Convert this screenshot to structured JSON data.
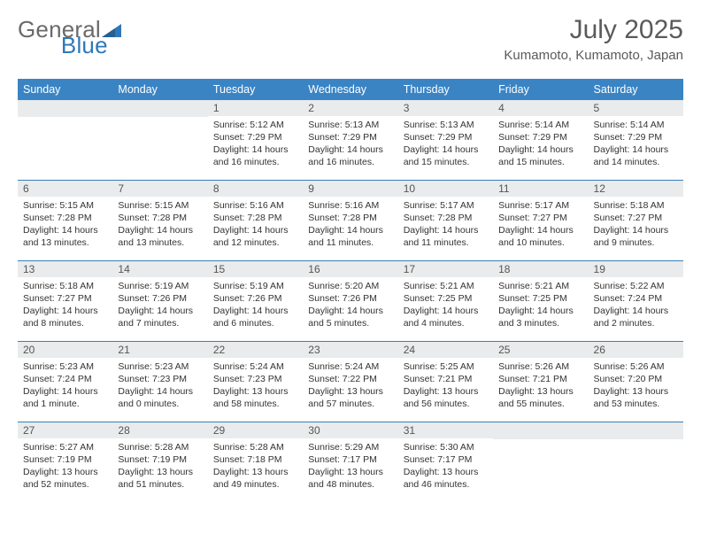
{
  "logo": {
    "general": "General",
    "blue": "Blue"
  },
  "header": {
    "month_title": "July 2025",
    "location": "Kumamoto, Kumamoto, Japan"
  },
  "colors": {
    "header_bg": "#3a84c4",
    "row_divider": "#3a7fb8",
    "daynum_bg": "#e9ebec",
    "logo_blue": "#2f78b7",
    "text_gray": "#6a6a6a"
  },
  "weekdays": [
    "Sunday",
    "Monday",
    "Tuesday",
    "Wednesday",
    "Thursday",
    "Friday",
    "Saturday"
  ],
  "weeks": [
    [
      null,
      null,
      {
        "num": "1",
        "sunrise": "Sunrise: 5:12 AM",
        "sunset": "Sunset: 7:29 PM",
        "daylight": "Daylight: 14 hours and 16 minutes."
      },
      {
        "num": "2",
        "sunrise": "Sunrise: 5:13 AM",
        "sunset": "Sunset: 7:29 PM",
        "daylight": "Daylight: 14 hours and 16 minutes."
      },
      {
        "num": "3",
        "sunrise": "Sunrise: 5:13 AM",
        "sunset": "Sunset: 7:29 PM",
        "daylight": "Daylight: 14 hours and 15 minutes."
      },
      {
        "num": "4",
        "sunrise": "Sunrise: 5:14 AM",
        "sunset": "Sunset: 7:29 PM",
        "daylight": "Daylight: 14 hours and 15 minutes."
      },
      {
        "num": "5",
        "sunrise": "Sunrise: 5:14 AM",
        "sunset": "Sunset: 7:29 PM",
        "daylight": "Daylight: 14 hours and 14 minutes."
      }
    ],
    [
      {
        "num": "6",
        "sunrise": "Sunrise: 5:15 AM",
        "sunset": "Sunset: 7:28 PM",
        "daylight": "Daylight: 14 hours and 13 minutes."
      },
      {
        "num": "7",
        "sunrise": "Sunrise: 5:15 AM",
        "sunset": "Sunset: 7:28 PM",
        "daylight": "Daylight: 14 hours and 13 minutes."
      },
      {
        "num": "8",
        "sunrise": "Sunrise: 5:16 AM",
        "sunset": "Sunset: 7:28 PM",
        "daylight": "Daylight: 14 hours and 12 minutes."
      },
      {
        "num": "9",
        "sunrise": "Sunrise: 5:16 AM",
        "sunset": "Sunset: 7:28 PM",
        "daylight": "Daylight: 14 hours and 11 minutes."
      },
      {
        "num": "10",
        "sunrise": "Sunrise: 5:17 AM",
        "sunset": "Sunset: 7:28 PM",
        "daylight": "Daylight: 14 hours and 11 minutes."
      },
      {
        "num": "11",
        "sunrise": "Sunrise: 5:17 AM",
        "sunset": "Sunset: 7:27 PM",
        "daylight": "Daylight: 14 hours and 10 minutes."
      },
      {
        "num": "12",
        "sunrise": "Sunrise: 5:18 AM",
        "sunset": "Sunset: 7:27 PM",
        "daylight": "Daylight: 14 hours and 9 minutes."
      }
    ],
    [
      {
        "num": "13",
        "sunrise": "Sunrise: 5:18 AM",
        "sunset": "Sunset: 7:27 PM",
        "daylight": "Daylight: 14 hours and 8 minutes."
      },
      {
        "num": "14",
        "sunrise": "Sunrise: 5:19 AM",
        "sunset": "Sunset: 7:26 PM",
        "daylight": "Daylight: 14 hours and 7 minutes."
      },
      {
        "num": "15",
        "sunrise": "Sunrise: 5:19 AM",
        "sunset": "Sunset: 7:26 PM",
        "daylight": "Daylight: 14 hours and 6 minutes."
      },
      {
        "num": "16",
        "sunrise": "Sunrise: 5:20 AM",
        "sunset": "Sunset: 7:26 PM",
        "daylight": "Daylight: 14 hours and 5 minutes."
      },
      {
        "num": "17",
        "sunrise": "Sunrise: 5:21 AM",
        "sunset": "Sunset: 7:25 PM",
        "daylight": "Daylight: 14 hours and 4 minutes."
      },
      {
        "num": "18",
        "sunrise": "Sunrise: 5:21 AM",
        "sunset": "Sunset: 7:25 PM",
        "daylight": "Daylight: 14 hours and 3 minutes."
      },
      {
        "num": "19",
        "sunrise": "Sunrise: 5:22 AM",
        "sunset": "Sunset: 7:24 PM",
        "daylight": "Daylight: 14 hours and 2 minutes."
      }
    ],
    [
      {
        "num": "20",
        "sunrise": "Sunrise: 5:23 AM",
        "sunset": "Sunset: 7:24 PM",
        "daylight": "Daylight: 14 hours and 1 minute."
      },
      {
        "num": "21",
        "sunrise": "Sunrise: 5:23 AM",
        "sunset": "Sunset: 7:23 PM",
        "daylight": "Daylight: 14 hours and 0 minutes."
      },
      {
        "num": "22",
        "sunrise": "Sunrise: 5:24 AM",
        "sunset": "Sunset: 7:23 PM",
        "daylight": "Daylight: 13 hours and 58 minutes."
      },
      {
        "num": "23",
        "sunrise": "Sunrise: 5:24 AM",
        "sunset": "Sunset: 7:22 PM",
        "daylight": "Daylight: 13 hours and 57 minutes."
      },
      {
        "num": "24",
        "sunrise": "Sunrise: 5:25 AM",
        "sunset": "Sunset: 7:21 PM",
        "daylight": "Daylight: 13 hours and 56 minutes."
      },
      {
        "num": "25",
        "sunrise": "Sunrise: 5:26 AM",
        "sunset": "Sunset: 7:21 PM",
        "daylight": "Daylight: 13 hours and 55 minutes."
      },
      {
        "num": "26",
        "sunrise": "Sunrise: 5:26 AM",
        "sunset": "Sunset: 7:20 PM",
        "daylight": "Daylight: 13 hours and 53 minutes."
      }
    ],
    [
      {
        "num": "27",
        "sunrise": "Sunrise: 5:27 AM",
        "sunset": "Sunset: 7:19 PM",
        "daylight": "Daylight: 13 hours and 52 minutes."
      },
      {
        "num": "28",
        "sunrise": "Sunrise: 5:28 AM",
        "sunset": "Sunset: 7:19 PM",
        "daylight": "Daylight: 13 hours and 51 minutes."
      },
      {
        "num": "29",
        "sunrise": "Sunrise: 5:28 AM",
        "sunset": "Sunset: 7:18 PM",
        "daylight": "Daylight: 13 hours and 49 minutes."
      },
      {
        "num": "30",
        "sunrise": "Sunrise: 5:29 AM",
        "sunset": "Sunset: 7:17 PM",
        "daylight": "Daylight: 13 hours and 48 minutes."
      },
      {
        "num": "31",
        "sunrise": "Sunrise: 5:30 AM",
        "sunset": "Sunset: 7:17 PM",
        "daylight": "Daylight: 13 hours and 46 minutes."
      },
      null,
      null
    ]
  ]
}
